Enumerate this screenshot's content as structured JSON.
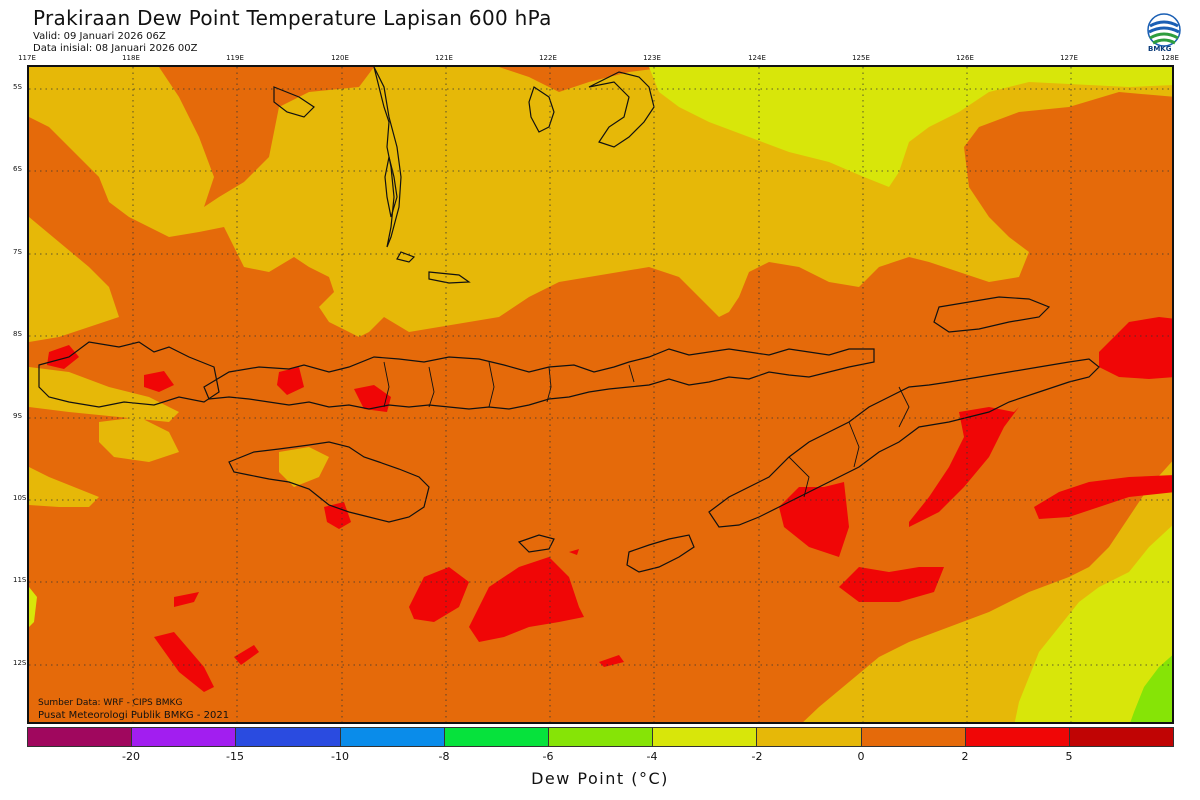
{
  "title": "Prakiraan Dew Point Temperature Lapisan 600 hPa",
  "valid": "Valid: 09 Januari 2026 06Z",
  "init": "Data inisial: 08 Januari 2026 00Z",
  "logo_text": "BMKG",
  "lon_labels": [
    "117E",
    "118E",
    "119E",
    "120E",
    "121E",
    "122E",
    "123E",
    "124E",
    "125E",
    "126E",
    "127E",
    "128E"
  ],
  "lat_labels": [
    "5S",
    "6S",
    "7S",
    "8S",
    "9S",
    "10S",
    "11S",
    "12S"
  ],
  "credit_1": "Sumber Data: WRF - CIPS BMKG",
  "credit_2": "Pusat Meteorologi Publik BMKG - 2021",
  "colorbar": {
    "colors": [
      "#a0075e",
      "#a21ef0",
      "#2a4be0",
      "#0a8cea",
      "#06e23c",
      "#86e406",
      "#d8e60a",
      "#e6b808",
      "#e56a0a",
      "#f00606",
      "#c00404"
    ],
    "labels": [
      "-20",
      "-15",
      "-10",
      "-8",
      "-6",
      "-4",
      "-2",
      "0",
      "2",
      "5"
    ],
    "title": "Dew Point (°C)"
  },
  "map_colors": {
    "orange": "#e56a0a",
    "gold": "#e6b808",
    "yellow": "#d8e60a",
    "green": "#86e406",
    "red": "#f00606"
  }
}
